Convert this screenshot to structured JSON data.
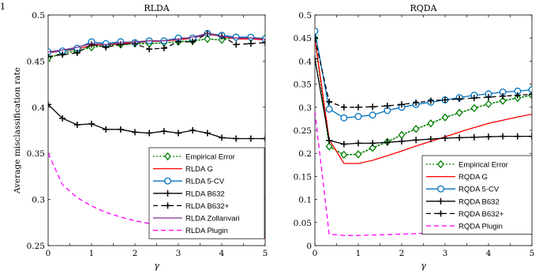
{
  "page_label": "1",
  "chart_data": [
    {
      "type": "line",
      "title": "RLDA",
      "xlabel": "γ",
      "ylabel": "Average misclassification rate",
      "xlim": [
        0,
        5
      ],
      "ylim": [
        0.25,
        0.5
      ],
      "xticks": [
        0,
        0.5,
        1,
        1.5,
        2,
        2.5,
        3,
        3.5,
        4,
        4.5,
        5
      ],
      "xtick_labels": [
        "0",
        "0.5",
        "1",
        "1.5",
        "2",
        "2.5",
        "3",
        "3.5",
        "4",
        "4.5",
        "5"
      ],
      "yticks": [
        0.25,
        0.3,
        0.35,
        0.4,
        0.45,
        0.5
      ],
      "ytick_labels": [
        "0.25",
        "0.3",
        "0.35",
        "0.4",
        "0.45",
        "0.5"
      ],
      "legend_position": "lower-right",
      "grid": false,
      "x": [
        0,
        0.33,
        0.67,
        1.0,
        1.33,
        1.67,
        2.0,
        2.33,
        2.67,
        3.0,
        3.33,
        3.67,
        4.0,
        4.33,
        4.67,
        5.0
      ],
      "series": [
        {
          "name": "Empirical Error",
          "color": "#008000",
          "style": "dotted",
          "marker": "diamond",
          "values": [
            0.453,
            0.459,
            0.461,
            0.465,
            0.467,
            0.468,
            0.469,
            0.469,
            0.47,
            0.471,
            0.472,
            0.474,
            0.473,
            0.476,
            0.475,
            0.475
          ]
        },
        {
          "name": "RLDA G",
          "color": "#ff0000",
          "style": "solid",
          "marker": "none",
          "values": [
            0.459,
            0.461,
            0.463,
            0.467,
            0.468,
            0.469,
            0.47,
            0.471,
            0.472,
            0.473,
            0.475,
            0.479,
            0.477,
            0.474,
            0.474,
            0.473
          ]
        },
        {
          "name": "RLDA 5-CV",
          "color": "#0072bd",
          "style": "solid",
          "marker": "circle",
          "values": [
            0.46,
            0.461,
            0.464,
            0.471,
            0.469,
            0.471,
            0.47,
            0.472,
            0.472,
            0.475,
            0.475,
            0.48,
            0.478,
            0.476,
            0.476,
            0.474
          ]
        },
        {
          "name": "RLDA B632",
          "color": "#000000",
          "style": "solid",
          "marker": "plus",
          "values": [
            0.403,
            0.388,
            0.381,
            0.382,
            0.376,
            0.376,
            0.373,
            0.372,
            0.374,
            0.372,
            0.375,
            0.372,
            0.367,
            0.366,
            0.366,
            0.366
          ]
        },
        {
          "name": "RLDA B632+",
          "color": "#000000",
          "style": "dashed",
          "marker": "plus",
          "values": [
            0.455,
            0.457,
            0.459,
            0.468,
            0.465,
            0.468,
            0.469,
            0.463,
            0.464,
            0.471,
            0.471,
            0.48,
            0.477,
            0.468,
            0.469,
            0.47
          ]
        },
        {
          "name": "RLDA Zollanvari",
          "color": "#7e2f8e",
          "style": "solid",
          "marker": "none",
          "values": [
            0.46,
            0.462,
            0.465,
            0.469,
            0.468,
            0.47,
            0.471,
            0.472,
            0.472,
            0.474,
            0.476,
            0.48,
            0.477,
            0.475,
            0.475,
            0.474
          ]
        },
        {
          "name": "RLDA Plugin",
          "color": "#ff00ff",
          "style": "dashed",
          "marker": "none",
          "values": [
            0.35,
            0.316,
            0.302,
            0.293,
            0.286,
            0.281,
            0.277,
            0.274,
            0.271,
            0.269,
            0.266,
            0.264,
            0.262,
            0.261,
            0.26,
            0.258
          ]
        }
      ]
    },
    {
      "type": "line",
      "title": "RQDA",
      "xlabel": "γ",
      "ylabel": "",
      "xlim": [
        0,
        5
      ],
      "ylim": [
        0,
        0.5
      ],
      "xticks": [
        0,
        0.5,
        1,
        1.5,
        2,
        2.5,
        3,
        3.5,
        4,
        4.5,
        5
      ],
      "xtick_labels": [
        "0",
        "0.5",
        "1",
        "1.5",
        "2",
        "2.5",
        "3",
        "3.5",
        "4",
        "4.5",
        "5"
      ],
      "yticks": [
        0,
        0.05,
        0.1,
        0.15,
        0.2,
        0.25,
        0.3,
        0.35,
        0.4,
        0.45,
        0.5
      ],
      "ytick_labels": [
        "0",
        "0.05",
        "0.1",
        "0.15",
        "0.2",
        "0.25",
        "0.3",
        "0.35",
        "0.4",
        "0.45",
        "0.5"
      ],
      "legend_position": "lower-right",
      "grid": false,
      "x": [
        0,
        0.33,
        0.67,
        1.0,
        1.33,
        1.67,
        2.0,
        2.33,
        2.67,
        3.0,
        3.33,
        3.67,
        4.0,
        4.33,
        4.67,
        5.0
      ],
      "series": [
        {
          "name": "Empirical Error",
          "color": "#008000",
          "style": "dotted",
          "marker": "diamond",
          "values": [
            0.45,
            0.215,
            0.197,
            0.198,
            0.212,
            0.225,
            0.24,
            0.253,
            0.265,
            0.278,
            0.288,
            0.298,
            0.307,
            0.314,
            0.32,
            0.326
          ]
        },
        {
          "name": "RQDA G",
          "color": "#ff0000",
          "style": "solid",
          "marker": "none",
          "values": [
            0.45,
            0.23,
            0.178,
            0.178,
            0.185,
            0.195,
            0.205,
            0.216,
            0.226,
            0.236,
            0.246,
            0.256,
            0.265,
            0.272,
            0.279,
            0.285
          ]
        },
        {
          "name": "RQDA 5-CV",
          "color": "#0072bd",
          "style": "solid",
          "marker": "circle",
          "values": [
            0.465,
            0.296,
            0.277,
            0.28,
            0.283,
            0.293,
            0.3,
            0.306,
            0.311,
            0.316,
            0.321,
            0.326,
            0.329,
            0.333,
            0.335,
            0.338
          ]
        },
        {
          "name": "RQDA B632",
          "color": "#000000",
          "style": "solid",
          "marker": "plus",
          "values": [
            0.405,
            0.228,
            0.22,
            0.222,
            0.222,
            0.224,
            0.226,
            0.229,
            0.231,
            0.233,
            0.234,
            0.235,
            0.236,
            0.237,
            0.237,
            0.237
          ]
        },
        {
          "name": "RQDA B632+",
          "color": "#000000",
          "style": "dashed",
          "marker": "plus",
          "values": [
            0.45,
            0.312,
            0.3,
            0.3,
            0.301,
            0.303,
            0.306,
            0.31,
            0.314,
            0.316,
            0.318,
            0.32,
            0.322,
            0.324,
            0.326,
            0.328
          ]
        },
        {
          "name": "RQDA Plugin",
          "color": "#ff00ff",
          "style": "dashed",
          "marker": "none",
          "values": [
            0.29,
            0.025,
            0.022,
            0.022,
            0.023,
            0.024,
            0.025,
            0.026,
            0.027,
            0.028,
            0.029,
            0.03,
            0.031,
            0.032,
            0.033,
            0.034
          ]
        }
      ]
    }
  ]
}
